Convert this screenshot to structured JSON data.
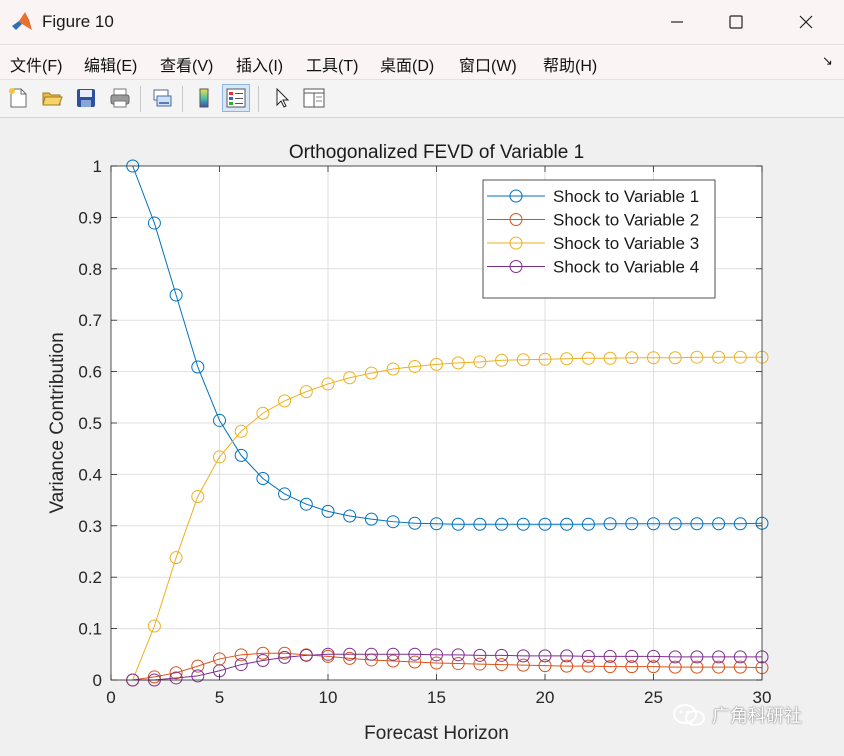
{
  "window": {
    "title": "Figure 10",
    "minimize_label": "—",
    "maximize_label": "☐",
    "close_label": "✕"
  },
  "menu": {
    "items": [
      "文件(F)",
      "编辑(E)",
      "查看(V)",
      "插入(I)",
      "工具(T)",
      "桌面(D)",
      "窗口(W)",
      "帮助(H)"
    ],
    "dock_arrow": "↘"
  },
  "toolbar": {
    "buttons": [
      "new-figure-icon",
      "open-file-icon",
      "save-icon",
      "print-icon",
      "link-plot-icon",
      "colorbar-icon",
      "legend-icon",
      "pointer-icon",
      "property-inspector-icon"
    ]
  },
  "colors": {
    "series1": "#0072BD",
    "series2": "#D95319",
    "series3": "#EDB120",
    "series4": "#7E2F8E"
  },
  "watermark": "广角科研社",
  "chart_data": {
    "type": "line",
    "title": "Orthogonalized FEVD of Variable 1",
    "xlabel": "Forecast Horizon",
    "ylabel": "Variance Contribution",
    "xlim": [
      0,
      30
    ],
    "ylim": [
      0,
      1
    ],
    "xticks": [
      0,
      5,
      10,
      15,
      20,
      25,
      30
    ],
    "yticks": [
      0,
      0.1,
      0.2,
      0.3,
      0.4,
      0.5,
      0.6,
      0.7,
      0.8,
      0.9,
      1
    ],
    "grid": true,
    "legend_position": "top-right",
    "marker": "circle",
    "x": [
      1,
      2,
      3,
      4,
      5,
      6,
      7,
      8,
      9,
      10,
      11,
      12,
      13,
      14,
      15,
      16,
      17,
      18,
      19,
      20,
      21,
      22,
      23,
      24,
      25,
      26,
      27,
      28,
      29,
      30
    ],
    "series": [
      {
        "name": "Shock to Variable 1",
        "values": [
          1.0,
          0.889,
          0.749,
          0.609,
          0.505,
          0.437,
          0.392,
          0.362,
          0.342,
          0.328,
          0.319,
          0.313,
          0.308,
          0.305,
          0.304,
          0.303,
          0.303,
          0.303,
          0.303,
          0.303,
          0.303,
          0.303,
          0.304,
          0.304,
          0.304,
          0.304,
          0.304,
          0.304,
          0.304,
          0.305
        ]
      },
      {
        "name": "Shock to Variable 2",
        "values": [
          0.0,
          0.006,
          0.014,
          0.027,
          0.041,
          0.049,
          0.052,
          0.052,
          0.049,
          0.046,
          0.042,
          0.039,
          0.037,
          0.035,
          0.033,
          0.032,
          0.031,
          0.03,
          0.029,
          0.028,
          0.027,
          0.027,
          0.026,
          0.026,
          0.026,
          0.025,
          0.025,
          0.025,
          0.025,
          0.024
        ]
      },
      {
        "name": "Shock to Variable 3",
        "values": [
          0.0,
          0.105,
          0.238,
          0.357,
          0.434,
          0.484,
          0.519,
          0.543,
          0.561,
          0.576,
          0.588,
          0.597,
          0.605,
          0.61,
          0.614,
          0.617,
          0.619,
          0.622,
          0.623,
          0.624,
          0.625,
          0.626,
          0.626,
          0.627,
          0.627,
          0.627,
          0.628,
          0.628,
          0.628,
          0.628
        ]
      },
      {
        "name": "Shock to Variable 4",
        "values": [
          0.0,
          0.0,
          0.004,
          0.008,
          0.018,
          0.03,
          0.038,
          0.044,
          0.048,
          0.05,
          0.05,
          0.05,
          0.05,
          0.05,
          0.049,
          0.049,
          0.048,
          0.048,
          0.047,
          0.047,
          0.047,
          0.046,
          0.046,
          0.046,
          0.046,
          0.045,
          0.045,
          0.045,
          0.045,
          0.045
        ]
      }
    ]
  }
}
